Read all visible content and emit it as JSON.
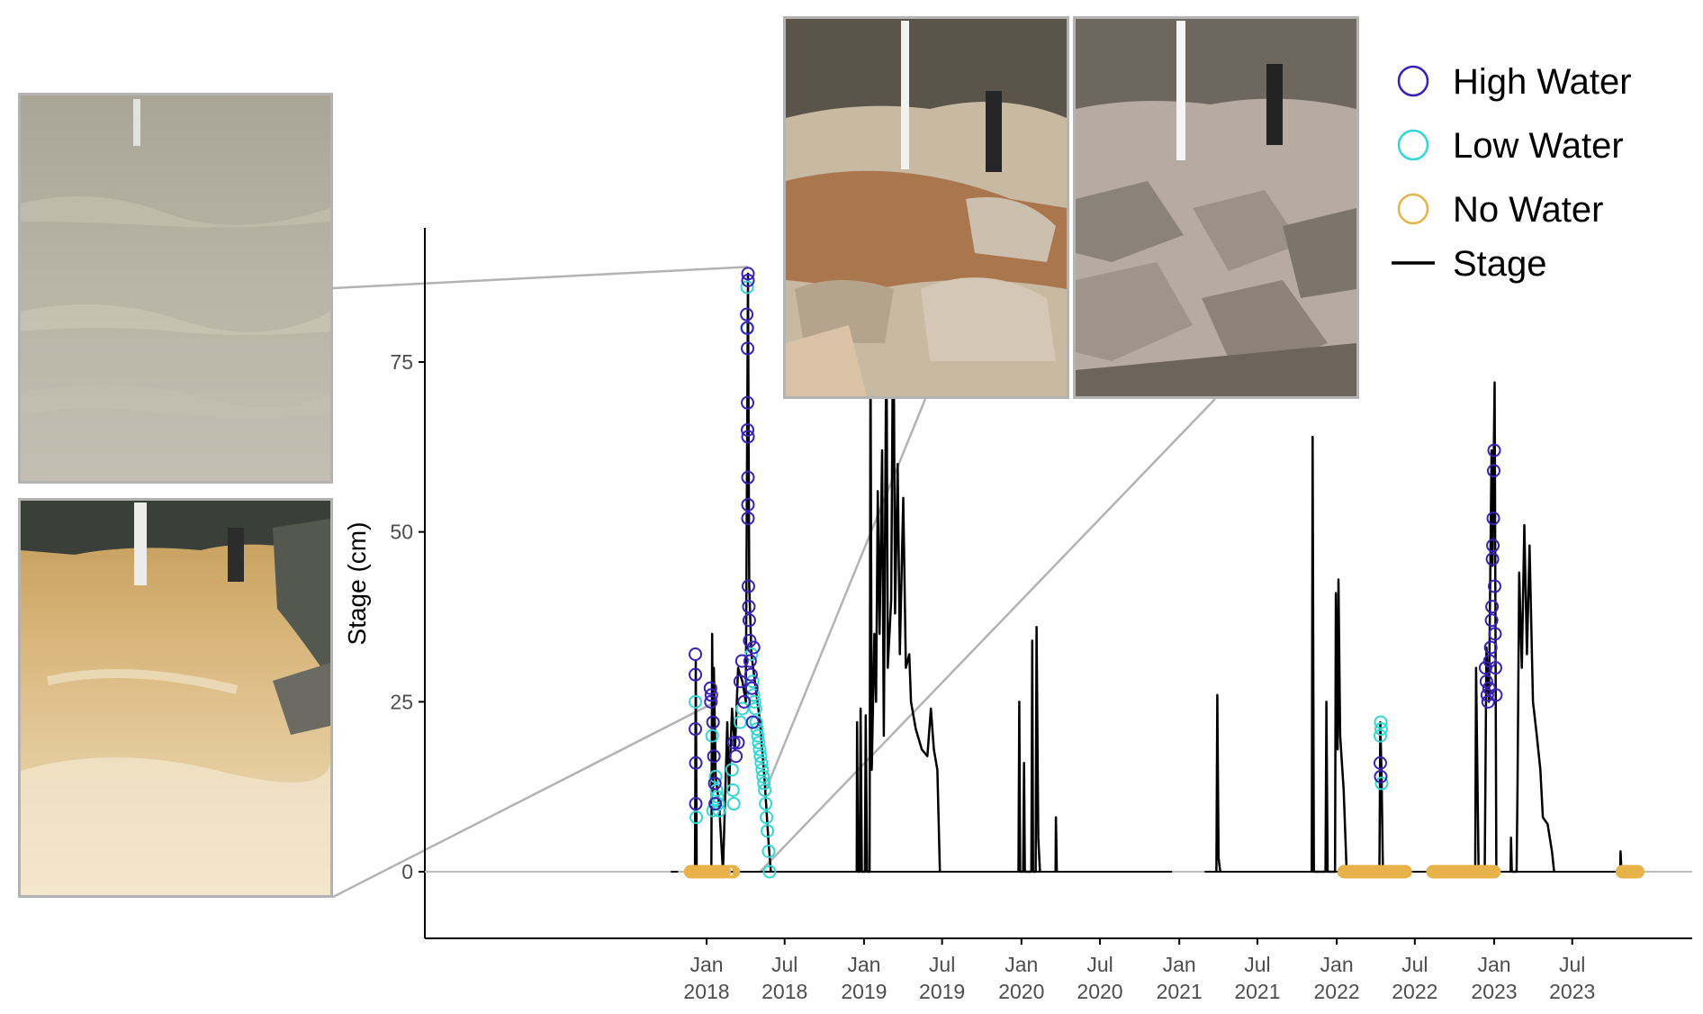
{
  "chart_data": {
    "type": "line",
    "ylabel": "Stage (cm)",
    "xlabel": "",
    "ylim": [
      -19,
      95
    ],
    "xlim": [
      "2017-08-01",
      "2023-11-30"
    ],
    "y_ticks": [
      0,
      25,
      50,
      75
    ],
    "x_ticks": [
      {
        "date": "2018-01-01",
        "label": "Jan\n2018"
      },
      {
        "date": "2018-07-01",
        "label": "Jul\n2018"
      },
      {
        "date": "2019-01-01",
        "label": "Jan\n2019"
      },
      {
        "date": "2019-07-01",
        "label": "Jul\n2019"
      },
      {
        "date": "2020-01-01",
        "label": "Jan\n2020"
      },
      {
        "date": "2020-07-01",
        "label": "Jul\n2020"
      },
      {
        "date": "2021-01-01",
        "label": "Jan\n2021"
      },
      {
        "date": "2021-07-01",
        "label": "Jul\n2021"
      },
      {
        "date": "2022-01-01",
        "label": "Jan\n2022"
      },
      {
        "date": "2022-07-01",
        "label": "Jul\n2022"
      },
      {
        "date": "2023-01-01",
        "label": "Jan\n2023"
      },
      {
        "date": "2023-07-01",
        "label": "Jul\n2023"
      }
    ],
    "grid": false,
    "legend_position": "top-right",
    "legend": [
      {
        "label": "High Water",
        "type": "circle",
        "color": "#3a1fb8"
      },
      {
        "label": "Low Water",
        "type": "circle",
        "color": "#33d6d6"
      },
      {
        "label": "No Water",
        "type": "circle",
        "color": "#e8b24a"
      },
      {
        "label": "Stage",
        "type": "line",
        "color": "#000000"
      }
    ],
    "series": [
      {
        "name": "Stage",
        "type": "line",
        "color": "#000000",
        "points": [
          [
            "2017-12-05",
            0
          ],
          [
            "2017-12-07",
            31
          ],
          [
            "2017-12-09",
            0
          ],
          [
            "2018-01-12",
            0
          ],
          [
            "2018-01-14",
            35
          ],
          [
            "2018-01-16",
            12
          ],
          [
            "2018-01-18",
            30
          ],
          [
            "2018-01-22",
            14
          ],
          [
            "2018-01-26",
            12
          ],
          [
            "2018-01-30",
            10
          ],
          [
            "2018-02-08",
            0
          ],
          [
            "2018-02-18",
            22
          ],
          [
            "2018-02-22",
            12
          ],
          [
            "2018-03-01",
            24
          ],
          [
            "2018-03-08",
            18
          ],
          [
            "2018-03-15",
            30
          ],
          [
            "2018-03-25",
            28
          ],
          [
            "2018-04-02",
            25
          ],
          [
            "2018-04-07",
            88
          ],
          [
            "2018-04-10",
            42
          ],
          [
            "2018-04-15",
            32
          ],
          [
            "2018-04-25",
            27
          ],
          [
            "2018-05-05",
            22
          ],
          [
            "2018-05-15",
            14
          ],
          [
            "2018-05-25",
            4
          ],
          [
            "2018-05-30",
            0
          ],
          [
            "2018-12-15",
            0
          ],
          [
            "2018-12-16",
            22
          ],
          [
            "2018-12-18",
            0
          ],
          [
            "2018-12-22",
            0
          ],
          [
            "2018-12-24",
            24
          ],
          [
            "2018-12-27",
            0
          ],
          [
            "2019-01-03",
            0
          ],
          [
            "2019-01-05",
            23
          ],
          [
            "2019-01-08",
            0
          ],
          [
            "2019-01-14",
            0
          ],
          [
            "2019-01-16",
            78
          ],
          [
            "2019-01-19",
            15
          ],
          [
            "2019-01-25",
            35
          ],
          [
            "2019-01-29",
            25
          ],
          [
            "2019-02-02",
            56
          ],
          [
            "2019-02-06",
            35
          ],
          [
            "2019-02-12",
            62
          ],
          [
            "2019-02-16",
            20
          ],
          [
            "2019-02-22",
            82
          ],
          [
            "2019-02-25",
            30
          ],
          [
            "2019-03-05",
            40
          ],
          [
            "2019-03-10",
            88
          ],
          [
            "2019-03-14",
            38
          ],
          [
            "2019-03-20",
            60
          ],
          [
            "2019-03-25",
            32
          ],
          [
            "2019-04-02",
            55
          ],
          [
            "2019-04-08",
            30
          ],
          [
            "2019-04-16",
            32
          ],
          [
            "2019-04-20",
            25
          ],
          [
            "2019-05-01",
            21
          ],
          [
            "2019-05-15",
            18
          ],
          [
            "2019-05-28",
            17
          ],
          [
            "2019-06-05",
            24
          ],
          [
            "2019-06-12",
            18
          ],
          [
            "2019-06-20",
            15
          ],
          [
            "2019-06-26",
            0
          ],
          [
            "2019-12-25",
            0
          ],
          [
            "2019-12-27",
            25
          ],
          [
            "2019-12-29",
            0
          ],
          [
            "2020-01-05",
            0
          ],
          [
            "2020-01-07",
            16
          ],
          [
            "2020-01-09",
            0
          ],
          [
            "2020-01-24",
            0
          ],
          [
            "2020-01-26",
            34
          ],
          [
            "2020-01-28",
            0
          ],
          [
            "2020-02-03",
            0
          ],
          [
            "2020-02-05",
            36
          ],
          [
            "2020-02-09",
            5
          ],
          [
            "2020-02-13",
            0
          ],
          [
            "2020-03-20",
            0
          ],
          [
            "2020-03-21",
            8
          ],
          [
            "2020-03-23",
            0
          ],
          [
            "2021-03-28",
            0
          ],
          [
            "2021-03-30",
            26
          ],
          [
            "2021-04-02",
            2
          ],
          [
            "2021-04-06",
            0
          ],
          [
            "2021-11-04",
            0
          ],
          [
            "2021-11-06",
            64
          ],
          [
            "2021-11-09",
            0
          ],
          [
            "2021-12-06",
            0
          ],
          [
            "2021-12-08",
            25
          ],
          [
            "2021-12-11",
            0
          ],
          [
            "2021-12-28",
            0
          ],
          [
            "2021-12-30",
            41
          ],
          [
            "2022-01-03",
            18
          ],
          [
            "2022-01-05",
            43
          ],
          [
            "2022-01-09",
            20
          ],
          [
            "2022-01-17",
            12
          ],
          [
            "2022-01-24",
            0
          ],
          [
            "2022-04-10",
            0
          ],
          [
            "2022-04-12",
            22
          ],
          [
            "2022-04-15",
            14
          ],
          [
            "2022-04-18",
            0
          ],
          [
            "2022-11-18",
            0
          ],
          [
            "2022-11-20",
            30
          ],
          [
            "2022-11-26",
            0
          ],
          [
            "2022-12-10",
            0
          ],
          [
            "2022-12-14",
            33
          ],
          [
            "2022-12-20",
            25
          ],
          [
            "2022-12-26",
            62
          ],
          [
            "2022-12-28",
            45
          ],
          [
            "2023-01-02",
            72
          ],
          [
            "2023-01-06",
            0
          ],
          [
            "2023-02-08",
            0
          ],
          [
            "2023-02-09",
            5
          ],
          [
            "2023-02-11",
            0
          ],
          [
            "2023-02-22",
            0
          ],
          [
            "2023-02-24",
            12
          ],
          [
            "2023-02-28",
            44
          ],
          [
            "2023-03-06",
            30
          ],
          [
            "2023-03-12",
            51
          ],
          [
            "2023-03-18",
            32
          ],
          [
            "2023-03-24",
            48
          ],
          [
            "2023-04-01",
            25
          ],
          [
            "2023-04-10",
            20
          ],
          [
            "2023-04-18",
            15
          ],
          [
            "2023-04-24",
            8
          ],
          [
            "2023-05-05",
            7
          ],
          [
            "2023-05-15",
            3
          ],
          [
            "2023-05-20",
            0
          ],
          [
            "2023-10-20",
            0
          ],
          [
            "2023-10-21",
            3
          ],
          [
            "2023-10-23",
            0
          ]
        ]
      },
      {
        "name": "High Water",
        "type": "scatter",
        "color": "#3a1fb8",
        "points": [
          [
            "2017-12-06",
            32
          ],
          [
            "2017-12-06",
            29
          ],
          [
            "2017-12-06",
            21
          ],
          [
            "2017-12-07",
            16
          ],
          [
            "2017-12-07",
            10
          ],
          [
            "2018-01-10",
            27
          ],
          [
            "2018-01-11",
            25
          ],
          [
            "2018-01-12",
            26
          ],
          [
            "2018-01-16",
            22
          ],
          [
            "2018-01-18",
            17
          ],
          [
            "2018-01-20",
            13
          ],
          [
            "2018-01-21",
            10
          ],
          [
            "2018-03-05",
            19
          ],
          [
            "2018-03-10",
            17
          ],
          [
            "2018-03-15",
            19
          ],
          [
            "2018-03-20",
            28
          ],
          [
            "2018-03-24",
            31
          ],
          [
            "2018-03-29",
            25
          ],
          [
            "2018-04-04",
            82
          ],
          [
            "2018-04-05",
            80
          ],
          [
            "2018-04-06",
            77
          ],
          [
            "2018-04-06",
            69
          ],
          [
            "2018-04-06",
            65
          ],
          [
            "2018-04-07",
            64
          ],
          [
            "2018-04-07",
            58
          ],
          [
            "2018-04-07",
            54
          ],
          [
            "2018-04-07",
            52
          ],
          [
            "2018-04-07",
            88
          ],
          [
            "2018-04-07",
            87
          ],
          [
            "2018-04-08",
            42
          ],
          [
            "2018-04-09",
            39
          ],
          [
            "2018-04-10",
            37
          ],
          [
            "2018-04-11",
            34
          ],
          [
            "2018-04-12",
            31
          ],
          [
            "2018-04-14",
            29
          ],
          [
            "2018-04-16",
            27
          ],
          [
            "2018-04-18",
            22
          ],
          [
            "2018-04-20",
            33
          ],
          [
            "2022-04-12",
            16
          ],
          [
            "2022-04-13",
            14
          ],
          [
            "2022-12-12",
            30
          ],
          [
            "2022-12-14",
            28
          ],
          [
            "2022-12-16",
            26
          ],
          [
            "2022-12-18",
            25
          ],
          [
            "2022-12-20",
            27
          ],
          [
            "2022-12-22",
            31
          ],
          [
            "2022-12-24",
            33
          ],
          [
            "2022-12-26",
            37
          ],
          [
            "2022-12-27",
            39
          ],
          [
            "2022-12-28",
            46
          ],
          [
            "2022-12-29",
            48
          ],
          [
            "2022-12-30",
            52
          ],
          [
            "2022-12-31",
            59
          ],
          [
            "2023-01-01",
            62
          ],
          [
            "2023-01-02",
            42
          ],
          [
            "2023-01-03",
            35
          ],
          [
            "2023-01-04",
            30
          ],
          [
            "2023-01-05",
            26
          ]
        ]
      },
      {
        "name": "Low Water",
        "type": "scatter",
        "color": "#33d6d6",
        "points": [
          [
            "2017-12-06",
            25
          ],
          [
            "2017-12-08",
            8
          ],
          [
            "2018-01-14",
            20
          ],
          [
            "2018-01-16",
            9
          ],
          [
            "2018-01-22",
            14
          ],
          [
            "2018-01-24",
            12
          ],
          [
            "2018-01-26",
            11
          ],
          [
            "2018-01-28",
            10
          ],
          [
            "2018-01-30",
            9
          ],
          [
            "2018-03-01",
            15
          ],
          [
            "2018-03-03",
            12
          ],
          [
            "2018-03-05",
            10
          ],
          [
            "2018-03-20",
            22
          ],
          [
            "2018-03-25",
            24
          ],
          [
            "2018-04-05",
            86
          ],
          [
            "2018-04-06",
            80
          ],
          [
            "2018-04-15",
            32
          ],
          [
            "2018-04-18",
            28
          ],
          [
            "2018-04-20",
            26
          ],
          [
            "2018-04-22",
            25
          ],
          [
            "2018-04-24",
            24
          ],
          [
            "2018-04-26",
            22
          ],
          [
            "2018-04-28",
            21
          ],
          [
            "2018-04-30",
            20
          ],
          [
            "2018-05-02",
            19
          ],
          [
            "2018-05-04",
            18
          ],
          [
            "2018-05-06",
            17
          ],
          [
            "2018-05-08",
            16
          ],
          [
            "2018-05-10",
            15
          ],
          [
            "2018-05-12",
            14
          ],
          [
            "2018-05-14",
            13
          ],
          [
            "2018-05-16",
            12
          ],
          [
            "2018-05-18",
            10
          ],
          [
            "2018-05-20",
            8
          ],
          [
            "2018-05-22",
            6
          ],
          [
            "2018-05-25",
            3
          ],
          [
            "2018-05-27",
            0
          ],
          [
            "2022-04-12",
            20
          ],
          [
            "2022-04-13",
            22
          ],
          [
            "2022-04-14",
            21
          ],
          [
            "2022-04-15",
            13
          ]
        ]
      },
      {
        "name": "No Water",
        "type": "scatter",
        "color": "#e8b24a",
        "ranges": [
          [
            "2017-11-25",
            "2018-02-12"
          ],
          [
            "2018-02-20",
            "2018-03-05"
          ],
          [
            "2022-01-18",
            "2022-06-10"
          ],
          [
            "2022-08-12",
            "2022-12-31"
          ],
          [
            "2023-10-25",
            "2023-11-30"
          ]
        ],
        "points": [
          [
            "2017-12-06",
            0
          ],
          [
            "2018-01-15",
            0
          ],
          [
            "2022-04-12",
            0
          ],
          [
            "2023-01-01",
            0
          ]
        ]
      }
    ]
  },
  "photos": [
    {
      "name": "flood-photo-foggy"
    },
    {
      "name": "flood-photo-muddy"
    },
    {
      "name": "low-water-photo"
    },
    {
      "name": "dry-stream-photo"
    }
  ]
}
